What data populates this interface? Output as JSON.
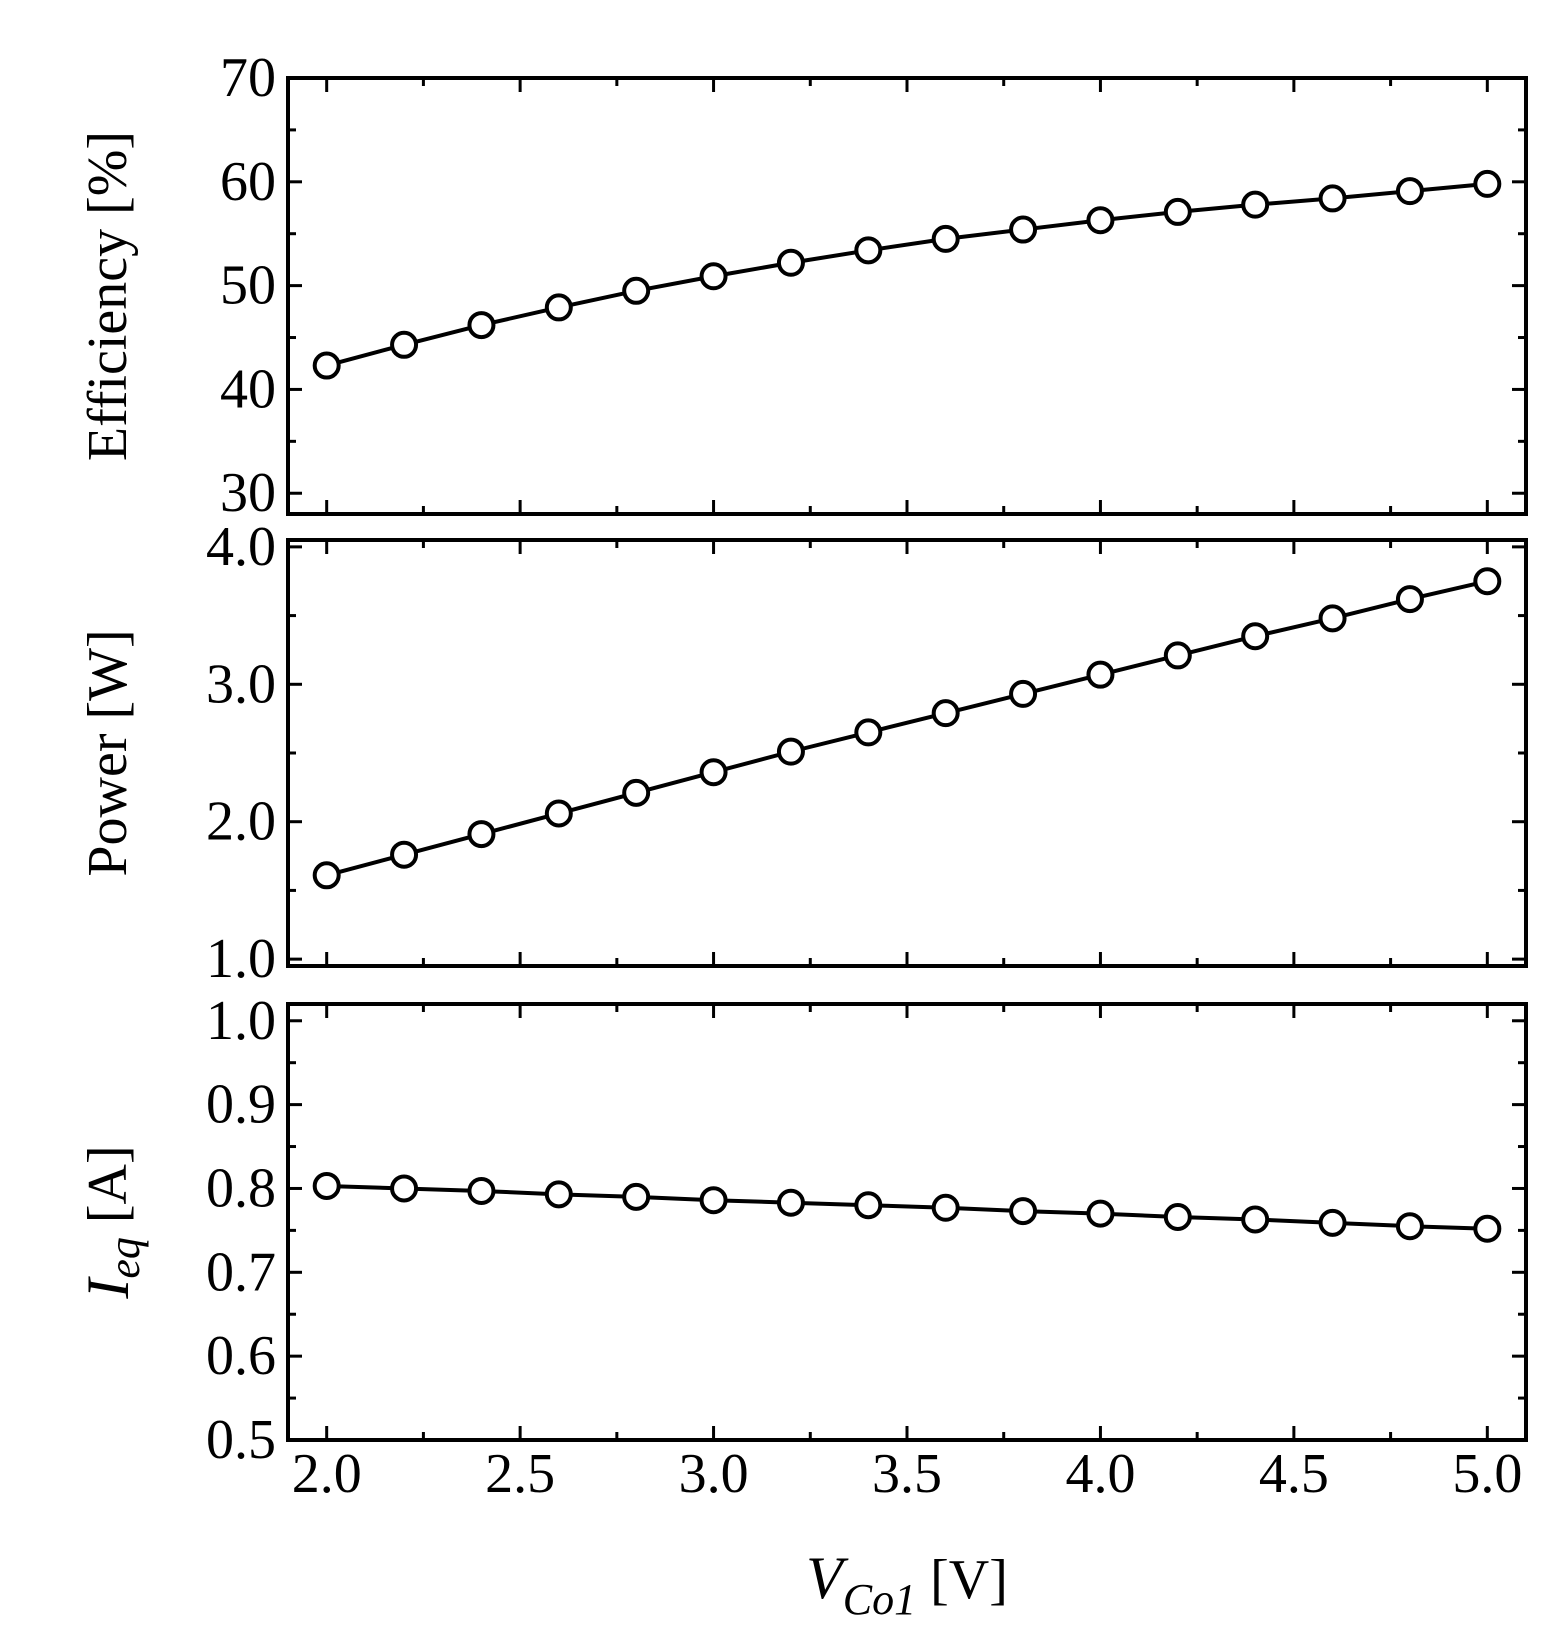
{
  "chart_data": [
    {
      "type": "line",
      "ylabel": "Efficiency [%]",
      "ylim": [
        28,
        70
      ],
      "yticks": [
        "30",
        "40",
        "50",
        "60",
        "70"
      ],
      "xlim": [
        1.9,
        5.1
      ],
      "x": [
        2.0,
        2.2,
        2.4,
        2.6,
        2.8,
        3.0,
        3.2,
        3.4,
        3.6,
        3.8,
        4.0,
        4.2,
        4.4,
        4.6,
        4.8,
        5.0
      ],
      "series": [
        {
          "marker": "open-circle",
          "values": [
            42.3,
            44.3,
            46.2,
            47.9,
            49.5,
            50.9,
            52.2,
            53.4,
            54.5,
            55.4,
            56.3,
            57.1,
            57.8,
            58.4,
            59.1,
            59.8
          ]
        }
      ]
    },
    {
      "type": "line",
      "ylabel": "Power [W]",
      "ylim": [
        0.95,
        4.05
      ],
      "yticks": [
        "1.0",
        "2.0",
        "3.0",
        "4.0"
      ],
      "xlim": [
        1.9,
        5.1
      ],
      "x": [
        2.0,
        2.2,
        2.4,
        2.6,
        2.8,
        3.0,
        3.2,
        3.4,
        3.6,
        3.8,
        4.0,
        4.2,
        4.4,
        4.6,
        4.8,
        5.0
      ],
      "series": [
        {
          "marker": "open-circle",
          "values": [
            1.61,
            1.76,
            1.91,
            2.06,
            2.21,
            2.36,
            2.51,
            2.65,
            2.79,
            2.93,
            3.07,
            3.21,
            3.35,
            3.48,
            3.62,
            3.75
          ]
        }
      ]
    },
    {
      "type": "line",
      "ylabel": "I",
      "ylabel_subscript": "eq",
      "ylabel_unit": "[A]",
      "ylim": [
        0.5,
        1.02
      ],
      "yticks": [
        "0.5",
        "0.6",
        "0.7",
        "0.8",
        "0.9",
        "1.0"
      ],
      "xlim": [
        1.9,
        5.1
      ],
      "xticks": [
        "2.0",
        "2.5",
        "3.0",
        "3.5",
        "4.0",
        "4.5",
        "5.0"
      ],
      "xlabel": "V",
      "xlabel_subscript": "Co1",
      "xlabel_unit": "[V]",
      "x": [
        2.0,
        2.2,
        2.4,
        2.6,
        2.8,
        3.0,
        3.2,
        3.4,
        3.6,
        3.8,
        4.0,
        4.2,
        4.4,
        4.6,
        4.8,
        5.0
      ],
      "series": [
        {
          "marker": "open-circle",
          "values": [
            0.803,
            0.8,
            0.797,
            0.793,
            0.79,
            0.786,
            0.783,
            0.78,
            0.777,
            0.773,
            0.77,
            0.766,
            0.763,
            0.759,
            0.755,
            0.752
          ]
        }
      ]
    }
  ]
}
